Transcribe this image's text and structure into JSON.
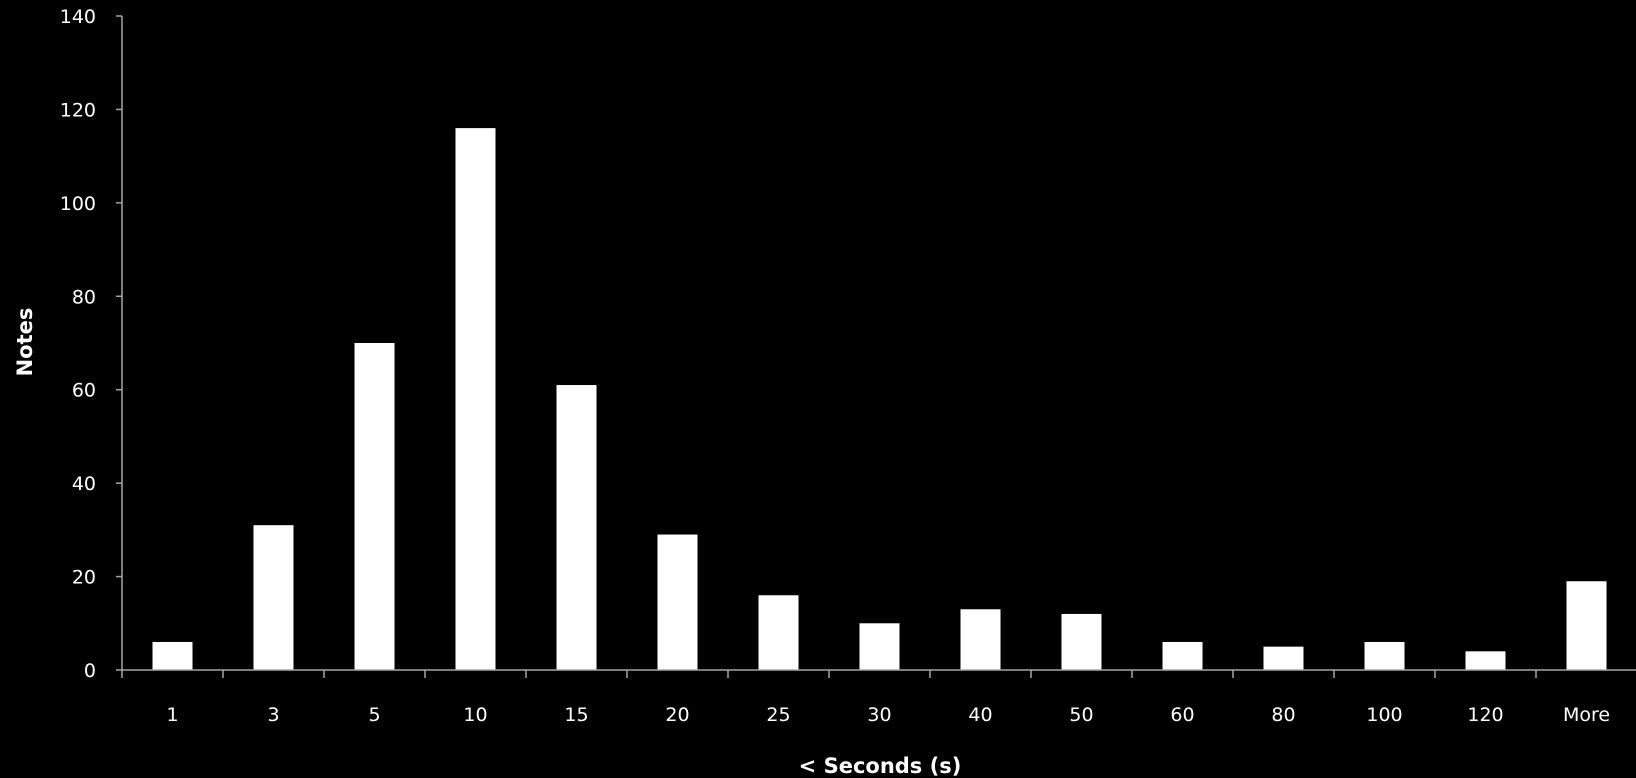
{
  "chart_data": {
    "type": "bar",
    "title": "",
    "xlabel": "< Seconds (s)",
    "ylabel": "Notes",
    "categories": [
      "1",
      "3",
      "5",
      "10",
      "15",
      "20",
      "25",
      "30",
      "40",
      "50",
      "60",
      "80",
      "100",
      "120",
      "More"
    ],
    "values": [
      6,
      31,
      70,
      116,
      61,
      29,
      16,
      10,
      13,
      12,
      6,
      5,
      6,
      4,
      19
    ],
    "ylim": [
      0,
      140
    ],
    "yticks": [
      0,
      20,
      40,
      60,
      80,
      100,
      120,
      140
    ],
    "grid": false,
    "legend": "none",
    "colors": {
      "background": "#000000",
      "bar": "#ffffff",
      "axis": "#a6a6a6",
      "text": "#ffffff"
    }
  }
}
